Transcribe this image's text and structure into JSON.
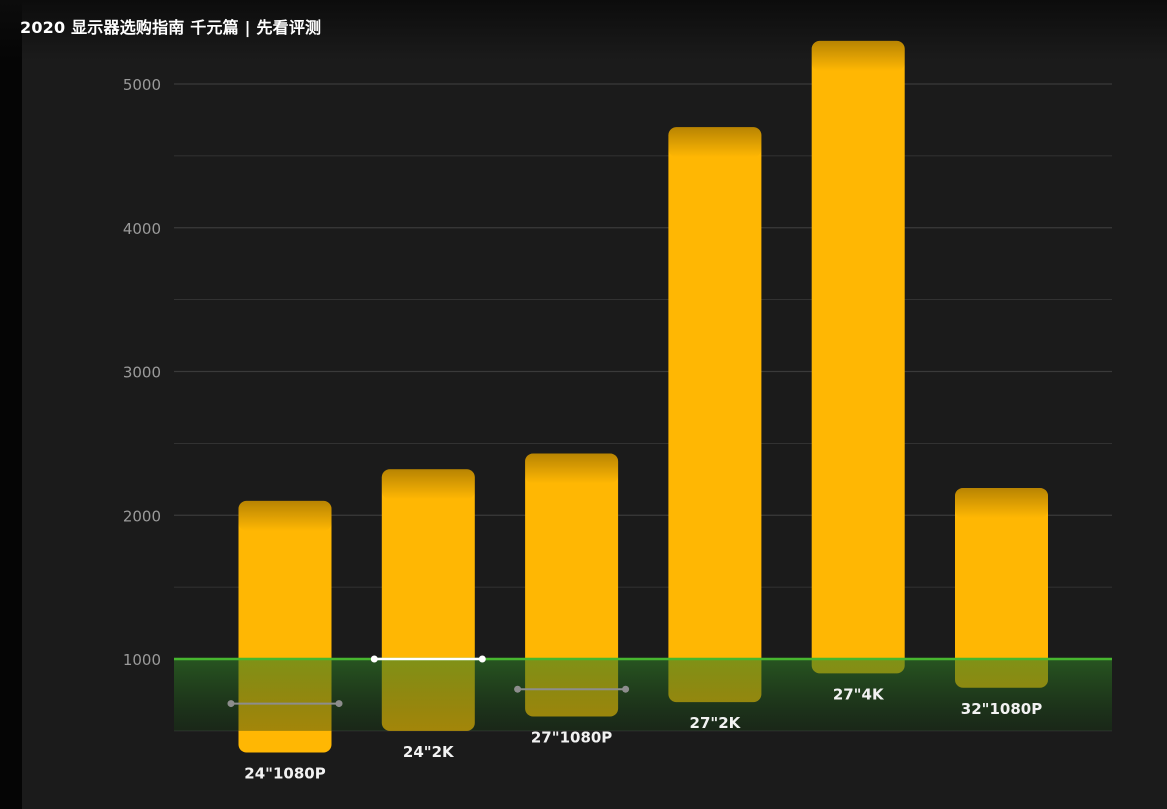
{
  "video": {
    "title": "2020 显示器选购指南 千元篇 | 先看评测"
  },
  "colors": {
    "background": "#1b1b1b",
    "bar": "#ffb703",
    "threshold_line": "#47b62f",
    "threshold_band": "#1f5a1a",
    "grid": "#3a3a3a"
  },
  "chart_data": {
    "type": "bar",
    "title": "",
    "xlabel": "",
    "ylabel": "",
    "ylim": [
      0,
      5400
    ],
    "yticks": [
      "1000",
      "2000",
      "3000",
      "4000",
      "5000"
    ],
    "grid": true,
    "categories": [
      "24\"1080P",
      "24\"2K",
      "27\"1080P",
      "27\"2K",
      "27\"4K",
      "32\"1080P"
    ],
    "series": [
      {
        "low": [
          350,
          500,
          600,
          700,
          900,
          800
        ],
        "high": [
          2100,
          2320,
          2430,
          4700,
          5300,
          2190
        ]
      }
    ],
    "range_markers": [
      {
        "category": "24\"1080P",
        "value": 690,
        "highlight": false
      },
      {
        "category": "24\"2K",
        "value": 1000,
        "highlight": true
      },
      {
        "category": "27\"1080P",
        "value": 790,
        "highlight": false
      }
    ],
    "threshold": {
      "value": 1000,
      "band_low": 500
    }
  }
}
